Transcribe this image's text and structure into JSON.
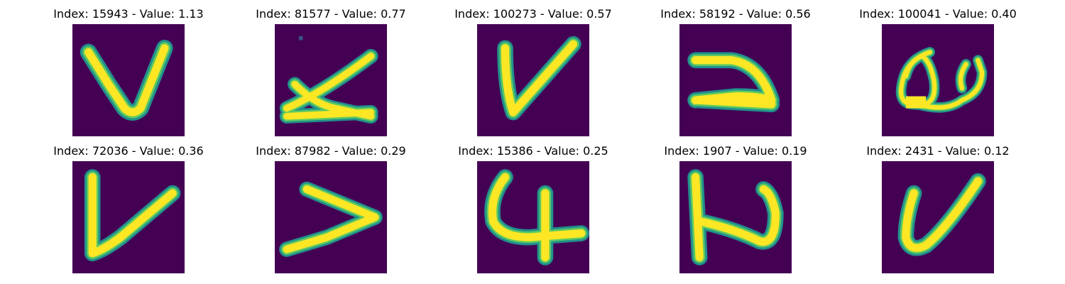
{
  "colors": {
    "background": "#440154",
    "stroke_edge": "#21918c",
    "stroke_mid": "#5ec962",
    "stroke_core": "#fde725"
  },
  "panels": [
    {
      "index": "15943",
      "value": "1.13",
      "title": "Index: 15943 - Value: 1.13"
    },
    {
      "index": "81577",
      "value": "0.77",
      "title": "Index: 81577 - Value: 0.77"
    },
    {
      "index": "100273",
      "value": "0.57",
      "title": "Index: 100273 - Value: 0.57"
    },
    {
      "index": "58192",
      "value": "0.56",
      "title": "Index: 58192 - Value: 0.56"
    },
    {
      "index": "100041",
      "value": "0.40",
      "title": "Index: 100041 - Value: 0.40"
    },
    {
      "index": "72036",
      "value": "0.36",
      "title": "Index: 72036 - Value: 0.36"
    },
    {
      "index": "87982",
      "value": "0.29",
      "title": "Index: 87982 - Value: 0.29"
    },
    {
      "index": "15386",
      "value": "0.25",
      "title": "Index: 15386 - Value: 0.25"
    },
    {
      "index": "1907",
      "value": "0.19",
      "title": "Index: 1907 - Value: 0.19"
    },
    {
      "index": "2431",
      "value": "0.12",
      "title": "Index: 2431 - Value: 0.12"
    }
  ]
}
